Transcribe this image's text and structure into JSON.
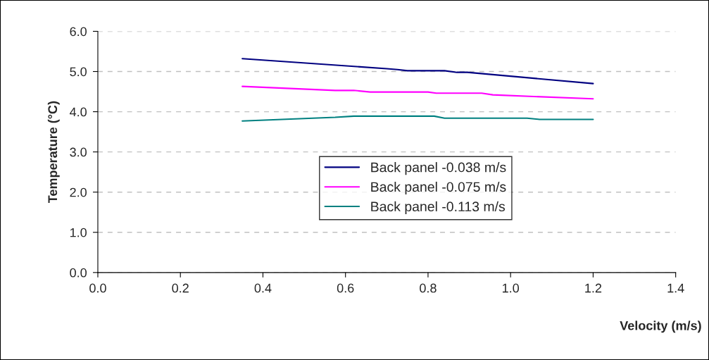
{
  "chart_data": {
    "type": "line",
    "xlabel": "Velocity (m/s)",
    "ylabel": "Temperature (°C)",
    "xlim": [
      0,
      1.4
    ],
    "xticks": [
      {
        "value": 0,
        "label": "0.0"
      },
      {
        "value": 0.2,
        "label": "0.2"
      },
      {
        "value": 0.4,
        "label": "0.4"
      },
      {
        "value": 0.6,
        "label": "0.6"
      },
      {
        "value": 0.8,
        "label": "0.8"
      },
      {
        "value": 1.0,
        "label": "1.0"
      },
      {
        "value": 1.2,
        "label": "1.2"
      },
      {
        "value": 1.4,
        "label": "1.4"
      }
    ],
    "ylim": [
      0,
      6
    ],
    "yticks": [
      {
        "value": 0,
        "label": "0.0"
      },
      {
        "value": 1,
        "label": "1.0"
      },
      {
        "value": 2,
        "label": "2.0"
      },
      {
        "value": 3,
        "label": "3.0"
      },
      {
        "value": 4,
        "label": "4.0"
      },
      {
        "value": 5,
        "label": "5.0"
      },
      {
        "value": 6,
        "label": "6.0"
      }
    ],
    "grid": "y",
    "legend": "center",
    "marker": "none",
    "line_style": "solid",
    "series": [
      {
        "name": "Back panel -0.038 m/s",
        "color": "#000080",
        "x": [
          0.35,
          0.7,
          0.726,
          0.75,
          0.84,
          0.87,
          0.895,
          1.2
        ],
        "values": [
          5.32,
          5.07,
          5.05,
          5.02,
          5.02,
          4.98,
          4.98,
          4.7
        ]
      },
      {
        "name": "Back panel -0.075 m/s",
        "color": "#ff00ff",
        "x": [
          0.35,
          0.575,
          0.62,
          0.66,
          0.8,
          0.82,
          0.93,
          0.957,
          1.2
        ],
        "values": [
          4.63,
          4.53,
          4.53,
          4.49,
          4.49,
          4.46,
          4.46,
          4.42,
          4.32
        ]
      },
      {
        "name": "Back panel -0.113 m/s",
        "color": "#008080",
        "x": [
          0.35,
          0.575,
          0.62,
          0.815,
          0.84,
          1.04,
          1.07,
          1.2
        ],
        "values": [
          3.77,
          3.86,
          3.89,
          3.89,
          3.84,
          3.84,
          3.81,
          3.81
        ]
      }
    ]
  }
}
